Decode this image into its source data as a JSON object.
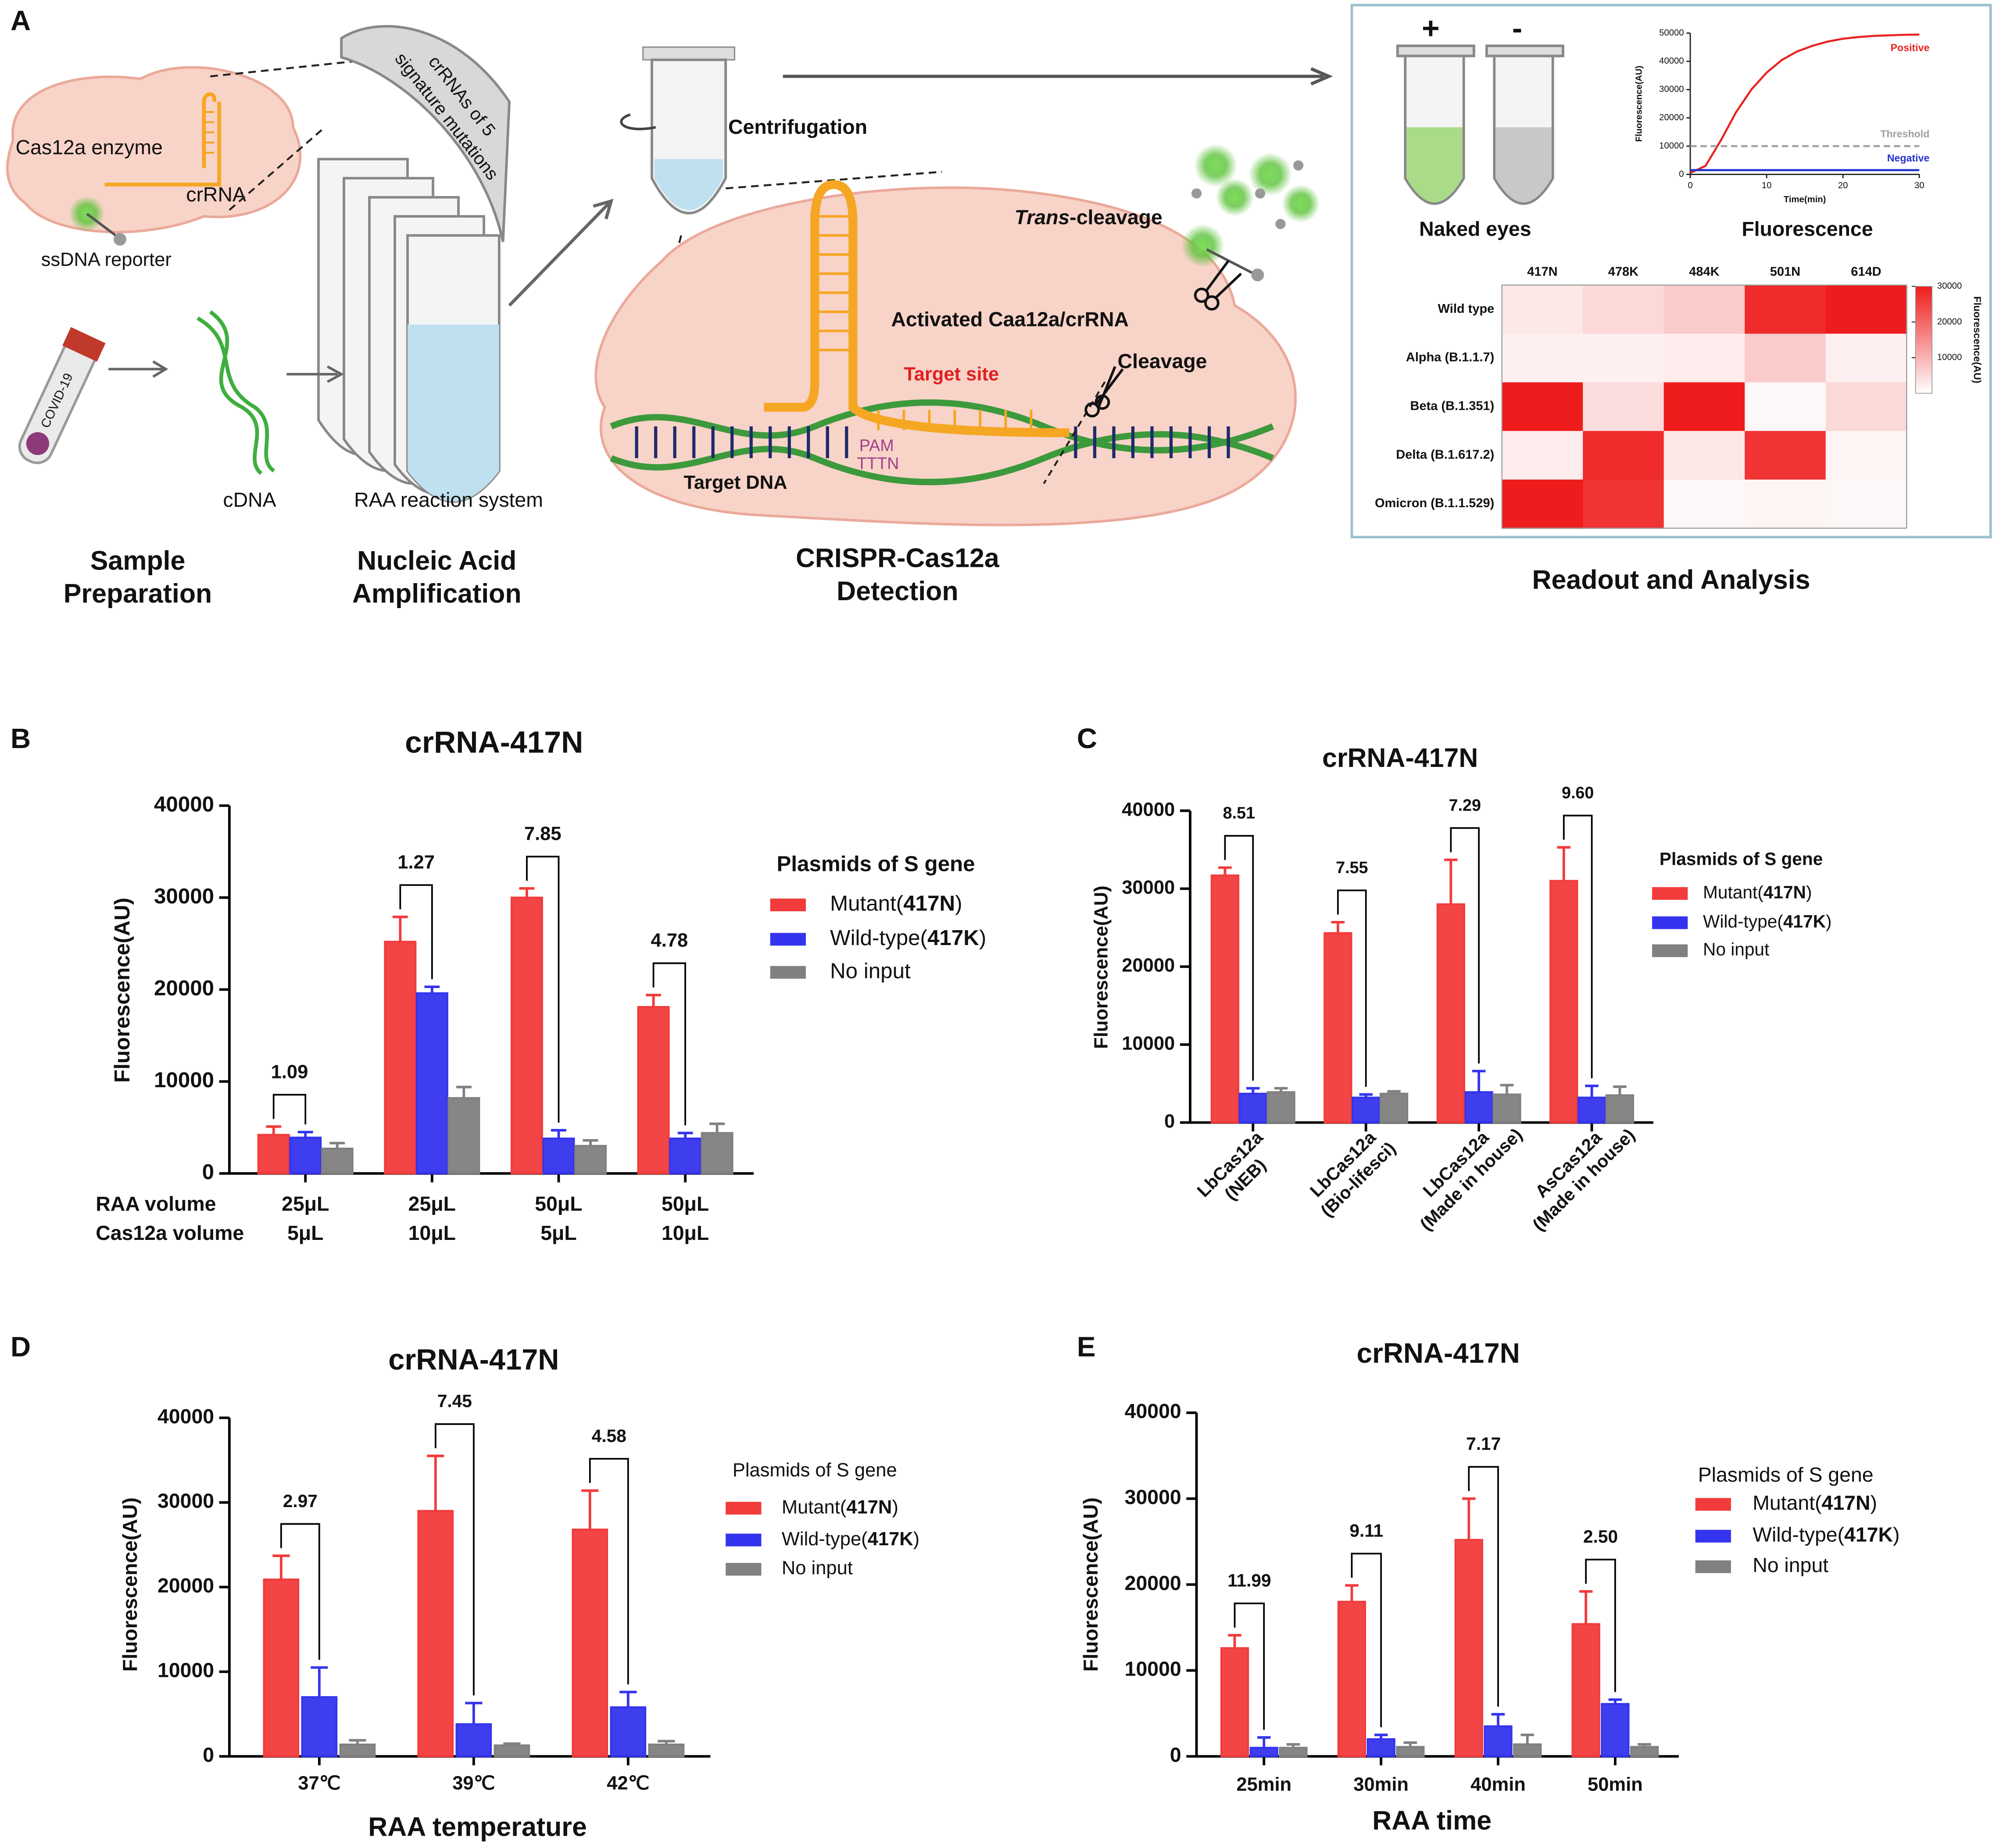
{
  "schematic": {
    "panel": "A",
    "cas12a_enzyme": "Cas12a enzyme",
    "crrna": "crRNA",
    "ssdna_reporter": "ssDNA reporter",
    "crrnas_of_5": [
      "crRNAs of 5",
      "signature mutations"
    ],
    "covid": "COVID-19",
    "cdna": "cDNA",
    "raa_reaction_system": "RAA reaction system",
    "centrifugation": "Centrifugation",
    "trans_cleavage": [
      "Trans",
      "-cleavage"
    ],
    "activated": "Activated Caa12a/crRNA",
    "target_site": "Target site",
    "cleavage": "Cleavage",
    "pam": "PAM",
    "tttn": "TTTN",
    "target_dna": "Target DNA",
    "plus": "+",
    "minus": "-",
    "naked_eyes": "Naked eyes",
    "fluorescence": "Fluorescence",
    "steps": [
      [
        "Sample",
        "Preparation"
      ],
      [
        "Nucleic Acid",
        "Amplification"
      ],
      [
        "CRISPR-Cas12a",
        "Detection"
      ]
    ],
    "readout": "Readout and Analysis"
  },
  "chart_data": [
    {
      "type": "heatmap",
      "categories": [
        "417N",
        "478K",
        "484K",
        "501N",
        "614D"
      ],
      "rows": [
        "Wild type",
        "Alpha (B.1.1.7)",
        "Beta (B.1.351)",
        "Delta (B.1.617.2)",
        "Omicron (B.1.1.529)"
      ],
      "values": [
        [
          3000,
          5000,
          7000,
          28000,
          30000
        ],
        [
          2000,
          2000,
          2500,
          7000,
          2000
        ],
        [
          30000,
          4500,
          30000,
          1000,
          5000
        ],
        [
          2500,
          28000,
          3000,
          27000,
          1500
        ],
        [
          30000,
          27000,
          1000,
          1500,
          1000
        ]
      ],
      "clim": [
        0,
        30000
      ],
      "cticks": [
        10000,
        20000,
        30000
      ],
      "colorbar_label": "Fluorescence(AU)",
      "colors": [
        "#ffffff",
        "#ee1c1c"
      ]
    },
    {
      "type": "line",
      "xlabel": "Time(min)",
      "ylabel": "Fluorescence(AU)",
      "x": [
        0,
        2,
        4,
        6,
        8,
        10,
        12,
        14,
        16,
        18,
        20,
        22,
        24,
        26,
        28,
        30
      ],
      "series": [
        {
          "name": "Positive",
          "color": "#e8231f",
          "values": [
            500,
            3000,
            12000,
            22000,
            30000,
            36000,
            40500,
            43500,
            45500,
            47000,
            48000,
            48600,
            49000,
            49200,
            49400,
            49500
          ]
        },
        {
          "name": "Threshold",
          "color": "#a0a0a0",
          "dash": true,
          "values": [
            10000,
            10000,
            10000,
            10000,
            10000,
            10000,
            10000,
            10000,
            10000,
            10000,
            10000,
            10000,
            10000,
            10000,
            10000,
            10000
          ]
        },
        {
          "name": "Negative",
          "color": "#2233cc",
          "values": [
            1500,
            1500,
            1500,
            1500,
            1500,
            1500,
            1500,
            1500,
            1500,
            1500,
            1500,
            1500,
            1500,
            1500,
            1500,
            1500
          ]
        }
      ],
      "xlim": [
        0,
        30
      ],
      "xticks": [
        0,
        10,
        20,
        30
      ],
      "ylim": [
        0,
        50000
      ],
      "yticks": [
        0,
        10000,
        20000,
        30000,
        40000,
        50000
      ]
    },
    {
      "type": "bar",
      "panel": "B",
      "title": "crRNA-417N",
      "ylabel": "Fluorescence(AU)",
      "categories": [
        "25μL",
        "25μL",
        "50μL",
        "50μL"
      ],
      "categories_2": [
        "5μL",
        "10μL",
        "5μL",
        "10μL"
      ],
      "category_row_labels": [
        "RAA volume",
        "Cas12a volume"
      ],
      "legend_title": "Plasmids of S gene",
      "series": [
        {
          "name": "Mutant(417N)",
          "color": "#f23b3b",
          "values": [
            4200,
            25200,
            30000,
            18100
          ],
          "errors": [
            900,
            2700,
            1000,
            1300
          ]
        },
        {
          "name": "Wild-type(417K)",
          "color": "#3434ee",
          "values": [
            3900,
            19600,
            3800,
            3800
          ],
          "errors": [
            600,
            700,
            900,
            600
          ]
        },
        {
          "name": "No input",
          "color": "#808080",
          "values": [
            2700,
            8200,
            3000,
            4400
          ],
          "errors": [
            600,
            1200,
            600,
            1000
          ]
        }
      ],
      "brackets": [
        1.09,
        1.27,
        7.85,
        4.78
      ],
      "ylim": [
        0,
        40000
      ],
      "yticks": [
        0,
        10000,
        20000,
        30000,
        40000
      ]
    },
    {
      "type": "bar",
      "panel": "C",
      "title": "crRNA-417N",
      "ylabel": "Fluorescence(AU)",
      "categories": [
        "LbCas12a",
        "LbCas12a",
        "LbCas12a",
        "AsCas12a"
      ],
      "category_notes": [
        "(NEB)",
        "(Bio-lifesci)",
        "(Made in house)",
        "(Made in house)"
      ],
      "legend_title": "Plasmids of S gene",
      "series": [
        {
          "name": "Mutant(417N)",
          "color": "#f23b3b",
          "values": [
            31700,
            24300,
            28000,
            31000
          ],
          "errors": [
            1000,
            1400,
            5700,
            4300
          ]
        },
        {
          "name": "Wild-type(417K)",
          "color": "#3434ee",
          "values": [
            3700,
            3200,
            3900,
            3200
          ],
          "errors": [
            700,
            400,
            2700,
            1500
          ]
        },
        {
          "name": "No input",
          "color": "#808080",
          "values": [
            3900,
            3700,
            3600,
            3500
          ],
          "errors": [
            500,
            300,
            1200,
            1100
          ]
        }
      ],
      "brackets": [
        8.51,
        7.55,
        7.29,
        {
          "value": 9.6,
          "label": "9.60"
        }
      ],
      "ylim": [
        0,
        40000
      ],
      "yticks": [
        0,
        10000,
        20000,
        30000,
        40000
      ]
    },
    {
      "type": "bar",
      "panel": "D",
      "title": "crRNA-417N",
      "ylabel": "Fluorescence(AU)",
      "xlabel": "RAA temperature",
      "categories": [
        "37℃",
        "39℃",
        "42℃"
      ],
      "legend_title": "Plasmids of S gene",
      "series": [
        {
          "name": "Mutant(417N)",
          "color": "#f23b3b",
          "values": [
            20900,
            29000,
            26800
          ],
          "errors": [
            2800,
            6500,
            4600
          ]
        },
        {
          "name": "Wild-type(417K)",
          "color": "#3434ee",
          "values": [
            7000,
            3800,
            5800
          ],
          "errors": [
            3500,
            2500,
            1800
          ]
        },
        {
          "name": "No input",
          "color": "#808080",
          "values": [
            1400,
            1300,
            1400
          ],
          "errors": [
            500,
            200,
            400
          ]
        }
      ],
      "brackets": [
        2.97,
        7.45,
        4.58
      ],
      "ylim": [
        0,
        40000
      ],
      "yticks": [
        0,
        10000,
        20000,
        30000,
        40000
      ]
    },
    {
      "type": "bar",
      "panel": "E",
      "title": "crRNA-417N",
      "ylabel": "Fluorescence(AU)",
      "xlabel": "RAA time",
      "categories": [
        "25min",
        "30min",
        "40min",
        "50min"
      ],
      "legend_title": "Plasmids of S gene",
      "series": [
        {
          "name": "Mutant(417N)",
          "color": "#f23b3b",
          "values": [
            12600,
            18000,
            25200,
            15400
          ],
          "errors": [
            1500,
            1900,
            4800,
            3800
          ]
        },
        {
          "name": "Wild-type(417K)",
          "color": "#3434ee",
          "values": [
            1000,
            2000,
            3500,
            6100
          ],
          "errors": [
            1200,
            500,
            1400,
            500
          ]
        },
        {
          "name": "No input",
          "color": "#808080",
          "values": [
            1000,
            1100,
            1400,
            1100
          ],
          "errors": [
            400,
            500,
            1100,
            300
          ]
        }
      ],
      "brackets": [
        11.99,
        9.11,
        7.17,
        {
          "value": 2.5,
          "label": "2.50"
        }
      ],
      "ylim": [
        0,
        40000
      ],
      "yticks": [
        0,
        10000,
        20000,
        30000,
        40000
      ]
    }
  ]
}
